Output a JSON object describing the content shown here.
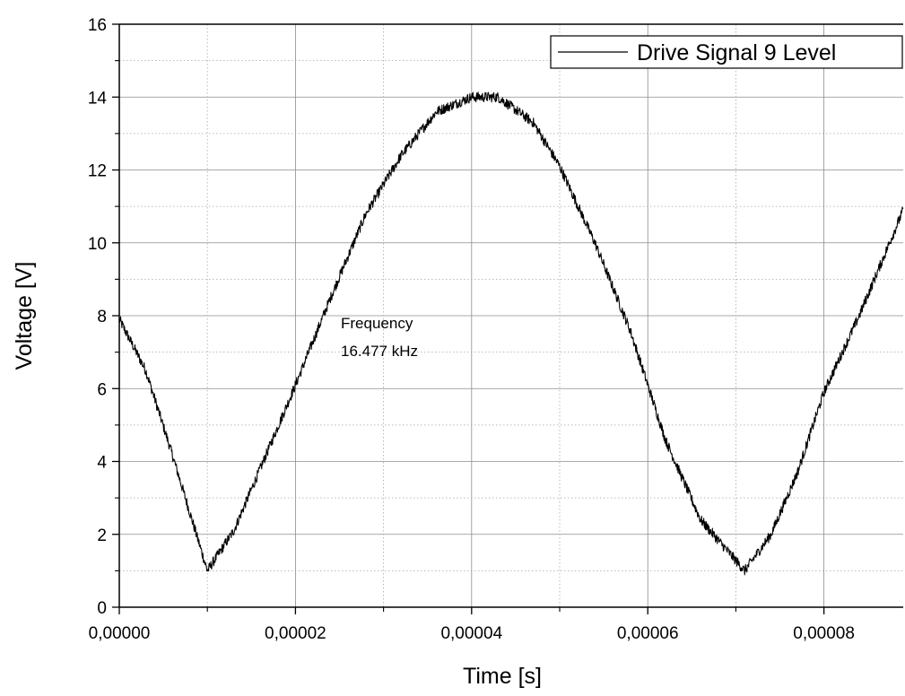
{
  "chart_data": {
    "type": "line",
    "xlabel": "Time [s]",
    "ylabel": "Voltage [V]",
    "xlim": [
      0,
      8.9e-05
    ],
    "ylim": [
      0,
      16
    ],
    "x_ticks": [
      0,
      2e-05,
      4e-05,
      6e-05,
      8e-05
    ],
    "x_tick_labels": [
      "0,00000",
      "0,00002",
      "0,00004",
      "0,00006",
      "0,00008"
    ],
    "y_ticks": [
      0,
      2,
      4,
      6,
      8,
      10,
      12,
      14,
      16
    ],
    "y_tick_labels": [
      "0",
      "2",
      "4",
      "6",
      "8",
      "10",
      "12",
      "14",
      "16"
    ],
    "grid": true,
    "legend": {
      "position": "top-right",
      "entries": [
        "Drive Signal 9 Level"
      ]
    },
    "annotations": [
      {
        "lines": [
          "Frequency",
          "16.477 kHz"
        ],
        "x": 2.5e-05,
        "y": 7.6
      }
    ],
    "series": [
      {
        "name": "Drive Signal 9 Level",
        "color": "#000000",
        "x": [
          0,
          3e-06,
          6e-06,
          1e-05,
          1.3e-05,
          1.6e-05,
          2e-05,
          2.4e-05,
          2.8e-05,
          3.2e-05,
          3.6e-05,
          4e-05,
          4.3e-05,
          4.7e-05,
          5e-05,
          5.4e-05,
          5.8e-05,
          6.2e-05,
          6.6e-05,
          7.1e-05,
          7.4e-05,
          7.7e-05,
          8e-05,
          8.4e-05,
          8.9e-05
        ],
        "y": [
          7.9,
          6.5,
          4.2,
          1.0,
          2.1,
          3.8,
          6.1,
          8.5,
          10.8,
          12.4,
          13.6,
          14.0,
          14.0,
          13.3,
          12.1,
          10.0,
          7.6,
          4.6,
          2.4,
          1.0,
          2.0,
          3.7,
          5.9,
          8.0,
          10.9
        ]
      }
    ]
  }
}
